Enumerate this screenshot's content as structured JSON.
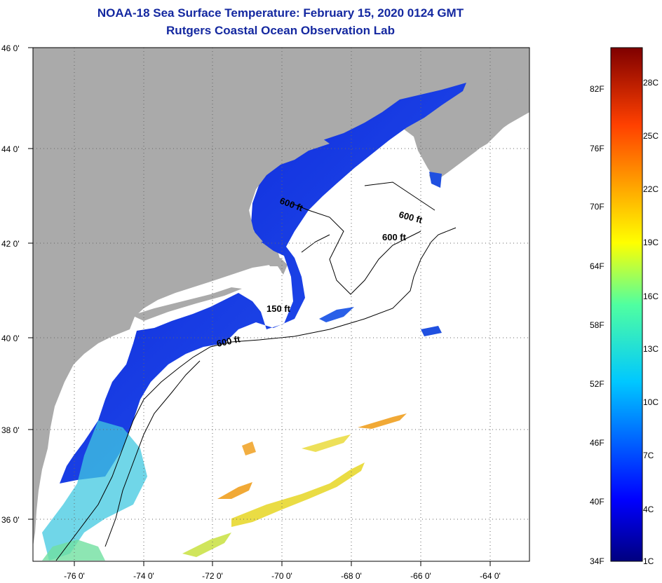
{
  "header": {
    "title": "NOAA-18 Sea Surface Temperature:  February 15, 2020 0124 GMT",
    "subtitle": "Rutgers Coastal Ocean Observation Lab"
  },
  "map": {
    "lat_labels": [
      "46 0'",
      "44 0'",
      "42 0'",
      "40 0'",
      "38 0'",
      "36 0'"
    ],
    "lat_values": [
      46,
      44,
      42,
      40,
      38,
      36
    ],
    "lon_labels": [
      "-76 0'",
      "-74 0'",
      "-72 0'",
      "-70 0'",
      "-68 0'",
      "-66 0'",
      "-64 0'"
    ],
    "lon_values": [
      -76,
      -74,
      -72,
      -70,
      -68,
      -66,
      -64
    ],
    "lat_range": [
      35,
      46
    ],
    "lon_range": [
      -77,
      -63
    ],
    "depth_labels": [
      "600 ft",
      "600 ft",
      "600 ft",
      "150 ft",
      "600 ft"
    ],
    "colors": {
      "land": "#aaaaaa",
      "cloud": "#ffffff",
      "cold": "#1030e0",
      "grid": "#555555"
    }
  },
  "colorbar": {
    "fahrenheit_labels": [
      "82F",
      "76F",
      "70F",
      "64F",
      "58F",
      "52F",
      "46F",
      "40F",
      "34F"
    ],
    "celsius_labels": [
      "28C",
      "25C",
      "22C",
      "19C",
      "16C",
      "13C",
      "10C",
      "7C",
      "4C",
      "1C"
    ]
  }
}
